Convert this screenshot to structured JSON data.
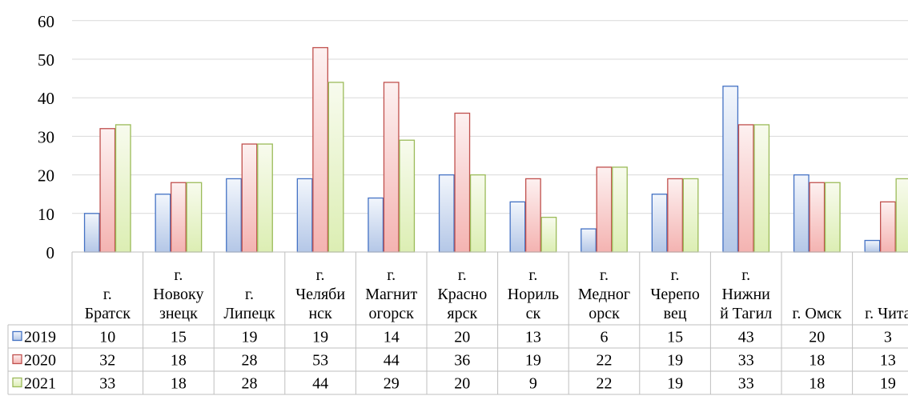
{
  "chart_data": {
    "type": "bar",
    "title": "",
    "xlabel": "",
    "ylabel": "",
    "ylim": [
      0,
      60
    ],
    "yticks": [
      0,
      10,
      20,
      30,
      40,
      50,
      60
    ],
    "grid": true,
    "legend": "table-left",
    "categories": [
      [
        "г.",
        "Братск"
      ],
      [
        "г.",
        "Новоку",
        "знецк"
      ],
      [
        "г.",
        "Липецк"
      ],
      [
        "г.",
        "Челяби",
        "нск"
      ],
      [
        "г.",
        "Магнит",
        "огорск"
      ],
      [
        "г.",
        "Красно",
        "ярск"
      ],
      [
        "г.",
        "Нориль",
        "ск"
      ],
      [
        "г.",
        "Медног",
        "орск"
      ],
      [
        "г.",
        "Черепо",
        "вец"
      ],
      [
        "г.",
        "Нижни",
        "й Тагил"
      ],
      [
        "г. Омск"
      ],
      [
        "г. Чита"
      ]
    ],
    "series": [
      {
        "name": "2019",
        "values": [
          10,
          15,
          19,
          19,
          14,
          20,
          13,
          6,
          15,
          43,
          20,
          3
        ],
        "color": "#4472c4",
        "fill_light": "#f2f6fc",
        "fill_dark": "#b4c7e7"
      },
      {
        "name": "2020",
        "values": [
          32,
          18,
          28,
          53,
          44,
          36,
          19,
          22,
          19,
          33,
          18,
          13
        ],
        "color": "#c0504d",
        "fill_light": "#fdf1f1",
        "fill_dark": "#f4b3b1"
      },
      {
        "name": "2021",
        "values": [
          33,
          18,
          28,
          44,
          29,
          20,
          9,
          22,
          19,
          33,
          18,
          19
        ],
        "color": "#9bbb59",
        "fill_light": "#f8fbee",
        "fill_dark": "#dceeb3"
      }
    ]
  }
}
